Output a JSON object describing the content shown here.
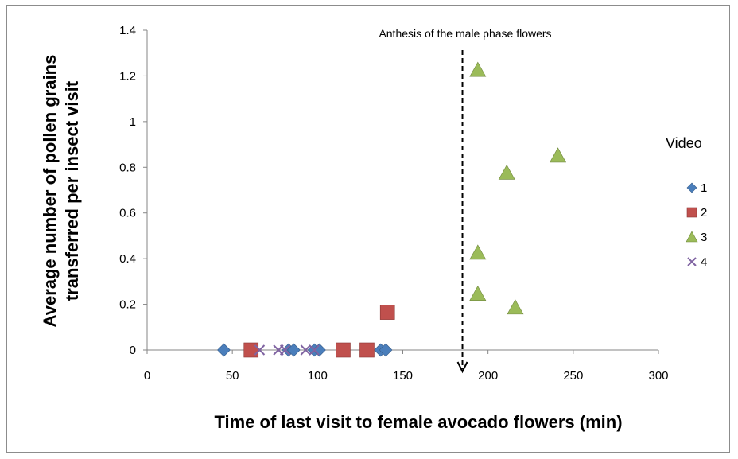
{
  "chart_data": {
    "type": "scatter",
    "xlabel": "Time of last visit to female avocado flowers (min)",
    "ylabel": "Average number of pollen grains transferred per insect visit",
    "ylabel_lines": [
      "Average number of pollen grains",
      "transferred per insect visit"
    ],
    "xlim": [
      0,
      300
    ],
    "ylim": [
      0,
      1.4
    ],
    "x_ticks": [
      "0",
      "50",
      "100",
      "150",
      "200",
      "250",
      "300"
    ],
    "y_ticks": [
      "0",
      "0.2",
      "0.4",
      "0.6",
      "0.8",
      "1",
      "1.2",
      "1.4"
    ],
    "legend_title": "Video",
    "legend_position": "right",
    "grid": false,
    "annotation": {
      "text": "Anthesis of the male phase flowers",
      "x": 185,
      "style": "dashed vertical arrow pointing down"
    },
    "series": [
      {
        "name": "1",
        "marker": "diamond",
        "color": "#4a7ebb",
        "points": [
          [
            45,
            0
          ],
          [
            62,
            0
          ],
          [
            83,
            0
          ],
          [
            86,
            0
          ],
          [
            98,
            0
          ],
          [
            101,
            0
          ],
          [
            137,
            0
          ],
          [
            140,
            0
          ]
        ]
      },
      {
        "name": "2",
        "marker": "square",
        "color": "#c0504d",
        "points": [
          [
            61,
            0
          ],
          [
            115,
            0
          ],
          [
            129,
            0
          ],
          [
            141,
            0.165
          ]
        ]
      },
      {
        "name": "3",
        "marker": "triangle",
        "color": "#9bbb59",
        "points": [
          [
            194,
            1.225
          ],
          [
            211,
            0.775
          ],
          [
            241,
            0.85
          ],
          [
            194,
            0.425
          ],
          [
            194,
            0.245
          ],
          [
            216,
            0.185
          ]
        ]
      },
      {
        "name": "4",
        "marker": "x",
        "color": "#8064a2",
        "points": [
          [
            66,
            0
          ],
          [
            77,
            0
          ],
          [
            81,
            0
          ],
          [
            93,
            0
          ],
          [
            98,
            0
          ]
        ]
      }
    ]
  }
}
